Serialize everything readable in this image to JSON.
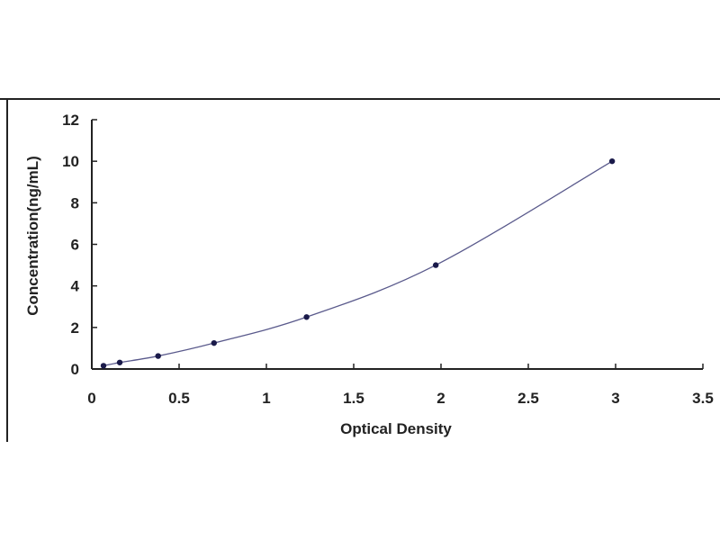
{
  "chart_data": {
    "type": "scatter",
    "title": "",
    "xlabel": "Optical Density",
    "ylabel": "Concentration(ng/mL)",
    "xlim": [
      0,
      3.5
    ],
    "ylim": [
      0,
      12
    ],
    "xticks": [
      "0",
      "0.5",
      "1",
      "1.5",
      "2",
      "2.5",
      "3",
      "3.5"
    ],
    "yticks": [
      "0",
      "2",
      "4",
      "6",
      "8",
      "10",
      "12"
    ],
    "grid": false,
    "legend": "none",
    "fit_curve": true,
    "series": [
      {
        "x": [
          0.067,
          0.16,
          0.38,
          0.7,
          1.23,
          1.97,
          2.98
        ],
        "y": [
          0.156,
          0.312,
          0.625,
          1.25,
          2.5,
          5,
          10
        ]
      }
    ],
    "colors": {
      "curve": "#5a5a8c",
      "points": "#1a1a4a",
      "axis": "#222222"
    }
  }
}
